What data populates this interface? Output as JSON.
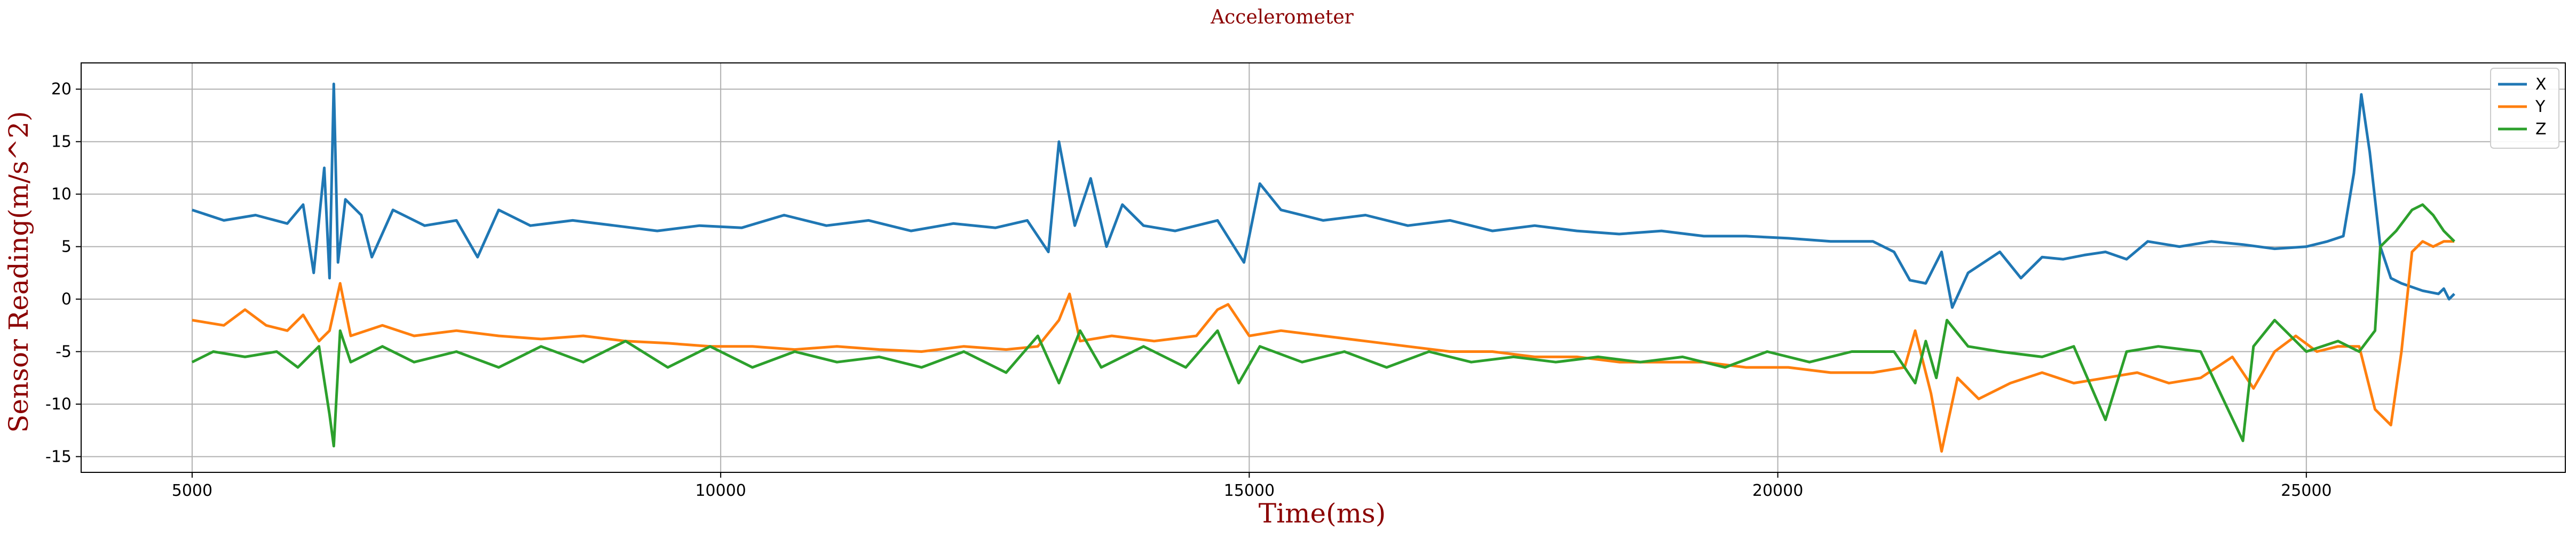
{
  "chart_data": {
    "type": "line",
    "title": "Accelerometer",
    "xlabel": "Time(ms)",
    "ylabel": "Sensor Reading(m/s^2)",
    "xlim": [
      3950,
      27450
    ],
    "ylim": [
      -16.5,
      22.5
    ],
    "xticks": [
      5000,
      10000,
      15000,
      20000,
      25000
    ],
    "yticks": [
      -15,
      -10,
      -5,
      0,
      5,
      10,
      15,
      20
    ],
    "grid": true,
    "legend_position": "top-right",
    "series": [
      {
        "name": "X",
        "color": "#1f77b4",
        "points": [
          [
            5000,
            8.5
          ],
          [
            5300,
            7.5
          ],
          [
            5600,
            8.0
          ],
          [
            5900,
            7.2
          ],
          [
            6050,
            9.0
          ],
          [
            6150,
            2.5
          ],
          [
            6250,
            12.5
          ],
          [
            6300,
            2.0
          ],
          [
            6340,
            20.5
          ],
          [
            6380,
            3.5
          ],
          [
            6450,
            9.5
          ],
          [
            6600,
            8.0
          ],
          [
            6700,
            4.0
          ],
          [
            6900,
            8.5
          ],
          [
            7200,
            7.0
          ],
          [
            7500,
            7.5
          ],
          [
            7700,
            4.0
          ],
          [
            7900,
            8.5
          ],
          [
            8200,
            7.0
          ],
          [
            8600,
            7.5
          ],
          [
            9000,
            7.0
          ],
          [
            9400,
            6.5
          ],
          [
            9800,
            7.0
          ],
          [
            10200,
            6.8
          ],
          [
            10600,
            8.0
          ],
          [
            11000,
            7.0
          ],
          [
            11400,
            7.5
          ],
          [
            11800,
            6.5
          ],
          [
            12200,
            7.2
          ],
          [
            12600,
            6.8
          ],
          [
            12900,
            7.5
          ],
          [
            13100,
            4.5
          ],
          [
            13200,
            15.0
          ],
          [
            13350,
            7.0
          ],
          [
            13500,
            11.5
          ],
          [
            13650,
            5.0
          ],
          [
            13800,
            9.0
          ],
          [
            14000,
            7.0
          ],
          [
            14300,
            6.5
          ],
          [
            14700,
            7.5
          ],
          [
            14950,
            3.5
          ],
          [
            15100,
            11.0
          ],
          [
            15300,
            8.5
          ],
          [
            15700,
            7.5
          ],
          [
            16100,
            8.0
          ],
          [
            16500,
            7.0
          ],
          [
            16900,
            7.5
          ],
          [
            17300,
            6.5
          ],
          [
            17700,
            7.0
          ],
          [
            18100,
            6.5
          ],
          [
            18500,
            6.2
          ],
          [
            18900,
            6.5
          ],
          [
            19300,
            6.0
          ],
          [
            19700,
            6.0
          ],
          [
            20100,
            5.8
          ],
          [
            20500,
            5.5
          ],
          [
            20900,
            5.5
          ],
          [
            21100,
            4.5
          ],
          [
            21250,
            1.8
          ],
          [
            21400,
            1.5
          ],
          [
            21550,
            4.5
          ],
          [
            21650,
            -0.8
          ],
          [
            21800,
            2.5
          ],
          [
            22100,
            4.5
          ],
          [
            22300,
            2.0
          ],
          [
            22500,
            4.0
          ],
          [
            22700,
            3.8
          ],
          [
            22900,
            4.2
          ],
          [
            23100,
            4.5
          ],
          [
            23300,
            3.8
          ],
          [
            23500,
            5.5
          ],
          [
            23800,
            5.0
          ],
          [
            24100,
            5.5
          ],
          [
            24400,
            5.2
          ],
          [
            24700,
            4.8
          ],
          [
            25000,
            5.0
          ],
          [
            25200,
            5.5
          ],
          [
            25350,
            6.0
          ],
          [
            25450,
            12.0
          ],
          [
            25520,
            19.5
          ],
          [
            25600,
            14.0
          ],
          [
            25700,
            5.0
          ],
          [
            25800,
            2.0
          ],
          [
            25900,
            1.5
          ],
          [
            26100,
            0.8
          ],
          [
            26250,
            0.5
          ],
          [
            26300,
            1.0
          ],
          [
            26350,
            0.0
          ],
          [
            26400,
            0.5
          ]
        ]
      },
      {
        "name": "Y",
        "color": "#ff7f0e",
        "points": [
          [
            5000,
            -2.0
          ],
          [
            5300,
            -2.5
          ],
          [
            5500,
            -1.0
          ],
          [
            5700,
            -2.5
          ],
          [
            5900,
            -3.0
          ],
          [
            6050,
            -1.5
          ],
          [
            6200,
            -4.0
          ],
          [
            6300,
            -3.0
          ],
          [
            6400,
            1.5
          ],
          [
            6500,
            -3.5
          ],
          [
            6800,
            -2.5
          ],
          [
            7100,
            -3.5
          ],
          [
            7500,
            -3.0
          ],
          [
            7900,
            -3.5
          ],
          [
            8300,
            -3.8
          ],
          [
            8700,
            -3.5
          ],
          [
            9100,
            -4.0
          ],
          [
            9500,
            -4.2
          ],
          [
            9900,
            -4.5
          ],
          [
            10300,
            -4.5
          ],
          [
            10700,
            -4.8
          ],
          [
            11100,
            -4.5
          ],
          [
            11500,
            -4.8
          ],
          [
            11900,
            -5.0
          ],
          [
            12300,
            -4.5
          ],
          [
            12700,
            -4.8
          ],
          [
            13000,
            -4.5
          ],
          [
            13200,
            -2.0
          ],
          [
            13300,
            0.5
          ],
          [
            13400,
            -4.0
          ],
          [
            13700,
            -3.5
          ],
          [
            14100,
            -4.0
          ],
          [
            14500,
            -3.5
          ],
          [
            14700,
            -1.0
          ],
          [
            14800,
            -0.5
          ],
          [
            15000,
            -3.5
          ],
          [
            15300,
            -3.0
          ],
          [
            15700,
            -3.5
          ],
          [
            16100,
            -4.0
          ],
          [
            16500,
            -4.5
          ],
          [
            16900,
            -5.0
          ],
          [
            17300,
            -5.0
          ],
          [
            17700,
            -5.5
          ],
          [
            18100,
            -5.5
          ],
          [
            18500,
            -6.0
          ],
          [
            18900,
            -6.0
          ],
          [
            19300,
            -6.0
          ],
          [
            19700,
            -6.5
          ],
          [
            20100,
            -6.5
          ],
          [
            20500,
            -7.0
          ],
          [
            20900,
            -7.0
          ],
          [
            21200,
            -6.5
          ],
          [
            21300,
            -3.0
          ],
          [
            21450,
            -9.0
          ],
          [
            21550,
            -14.5
          ],
          [
            21700,
            -7.5
          ],
          [
            21900,
            -9.5
          ],
          [
            22200,
            -8.0
          ],
          [
            22500,
            -7.0
          ],
          [
            22800,
            -8.0
          ],
          [
            23100,
            -7.5
          ],
          [
            23400,
            -7.0
          ],
          [
            23700,
            -8.0
          ],
          [
            24000,
            -7.5
          ],
          [
            24300,
            -5.5
          ],
          [
            24500,
            -8.5
          ],
          [
            24700,
            -5.0
          ],
          [
            24900,
            -3.5
          ],
          [
            25100,
            -5.0
          ],
          [
            25300,
            -4.5
          ],
          [
            25500,
            -4.5
          ],
          [
            25650,
            -10.5
          ],
          [
            25800,
            -12.0
          ],
          [
            25900,
            -5.0
          ],
          [
            26000,
            4.5
          ],
          [
            26100,
            5.5
          ],
          [
            26200,
            5.0
          ],
          [
            26300,
            5.5
          ],
          [
            26400,
            5.5
          ]
        ]
      },
      {
        "name": "Z",
        "color": "#2ca02c",
        "points": [
          [
            5000,
            -6.0
          ],
          [
            5200,
            -5.0
          ],
          [
            5500,
            -5.5
          ],
          [
            5800,
            -5.0
          ],
          [
            6000,
            -6.5
          ],
          [
            6200,
            -4.5
          ],
          [
            6300,
            -11.0
          ],
          [
            6340,
            -14.0
          ],
          [
            6400,
            -3.0
          ],
          [
            6500,
            -6.0
          ],
          [
            6800,
            -4.5
          ],
          [
            7100,
            -6.0
          ],
          [
            7500,
            -5.0
          ],
          [
            7900,
            -6.5
          ],
          [
            8300,
            -4.5
          ],
          [
            8700,
            -6.0
          ],
          [
            9100,
            -4.0
          ],
          [
            9500,
            -6.5
          ],
          [
            9900,
            -4.5
          ],
          [
            10300,
            -6.5
          ],
          [
            10700,
            -5.0
          ],
          [
            11100,
            -6.0
          ],
          [
            11500,
            -5.5
          ],
          [
            11900,
            -6.5
          ],
          [
            12300,
            -5.0
          ],
          [
            12700,
            -7.0
          ],
          [
            13000,
            -3.5
          ],
          [
            13200,
            -8.0
          ],
          [
            13400,
            -3.0
          ],
          [
            13600,
            -6.5
          ],
          [
            14000,
            -4.5
          ],
          [
            14400,
            -6.5
          ],
          [
            14700,
            -3.0
          ],
          [
            14900,
            -8.0
          ],
          [
            15100,
            -4.5
          ],
          [
            15500,
            -6.0
          ],
          [
            15900,
            -5.0
          ],
          [
            16300,
            -6.5
          ],
          [
            16700,
            -5.0
          ],
          [
            17100,
            -6.0
          ],
          [
            17500,
            -5.5
          ],
          [
            17900,
            -6.0
          ],
          [
            18300,
            -5.5
          ],
          [
            18700,
            -6.0
          ],
          [
            19100,
            -5.5
          ],
          [
            19500,
            -6.5
          ],
          [
            19900,
            -5.0
          ],
          [
            20300,
            -6.0
          ],
          [
            20700,
            -5.0
          ],
          [
            21100,
            -5.0
          ],
          [
            21300,
            -8.0
          ],
          [
            21400,
            -4.0
          ],
          [
            21500,
            -7.5
          ],
          [
            21600,
            -2.0
          ],
          [
            21800,
            -4.5
          ],
          [
            22100,
            -5.0
          ],
          [
            22500,
            -5.5
          ],
          [
            22800,
            -4.5
          ],
          [
            23100,
            -11.5
          ],
          [
            23300,
            -5.0
          ],
          [
            23600,
            -4.5
          ],
          [
            24000,
            -5.0
          ],
          [
            24400,
            -13.5
          ],
          [
            24500,
            -4.5
          ],
          [
            24700,
            -2.0
          ],
          [
            25000,
            -5.0
          ],
          [
            25300,
            -4.0
          ],
          [
            25500,
            -5.0
          ],
          [
            25650,
            -3.0
          ],
          [
            25700,
            5.0
          ],
          [
            25850,
            6.5
          ],
          [
            26000,
            8.5
          ],
          [
            26100,
            9.0
          ],
          [
            26200,
            8.0
          ],
          [
            26300,
            6.5
          ],
          [
            26400,
            5.5
          ]
        ]
      }
    ]
  }
}
